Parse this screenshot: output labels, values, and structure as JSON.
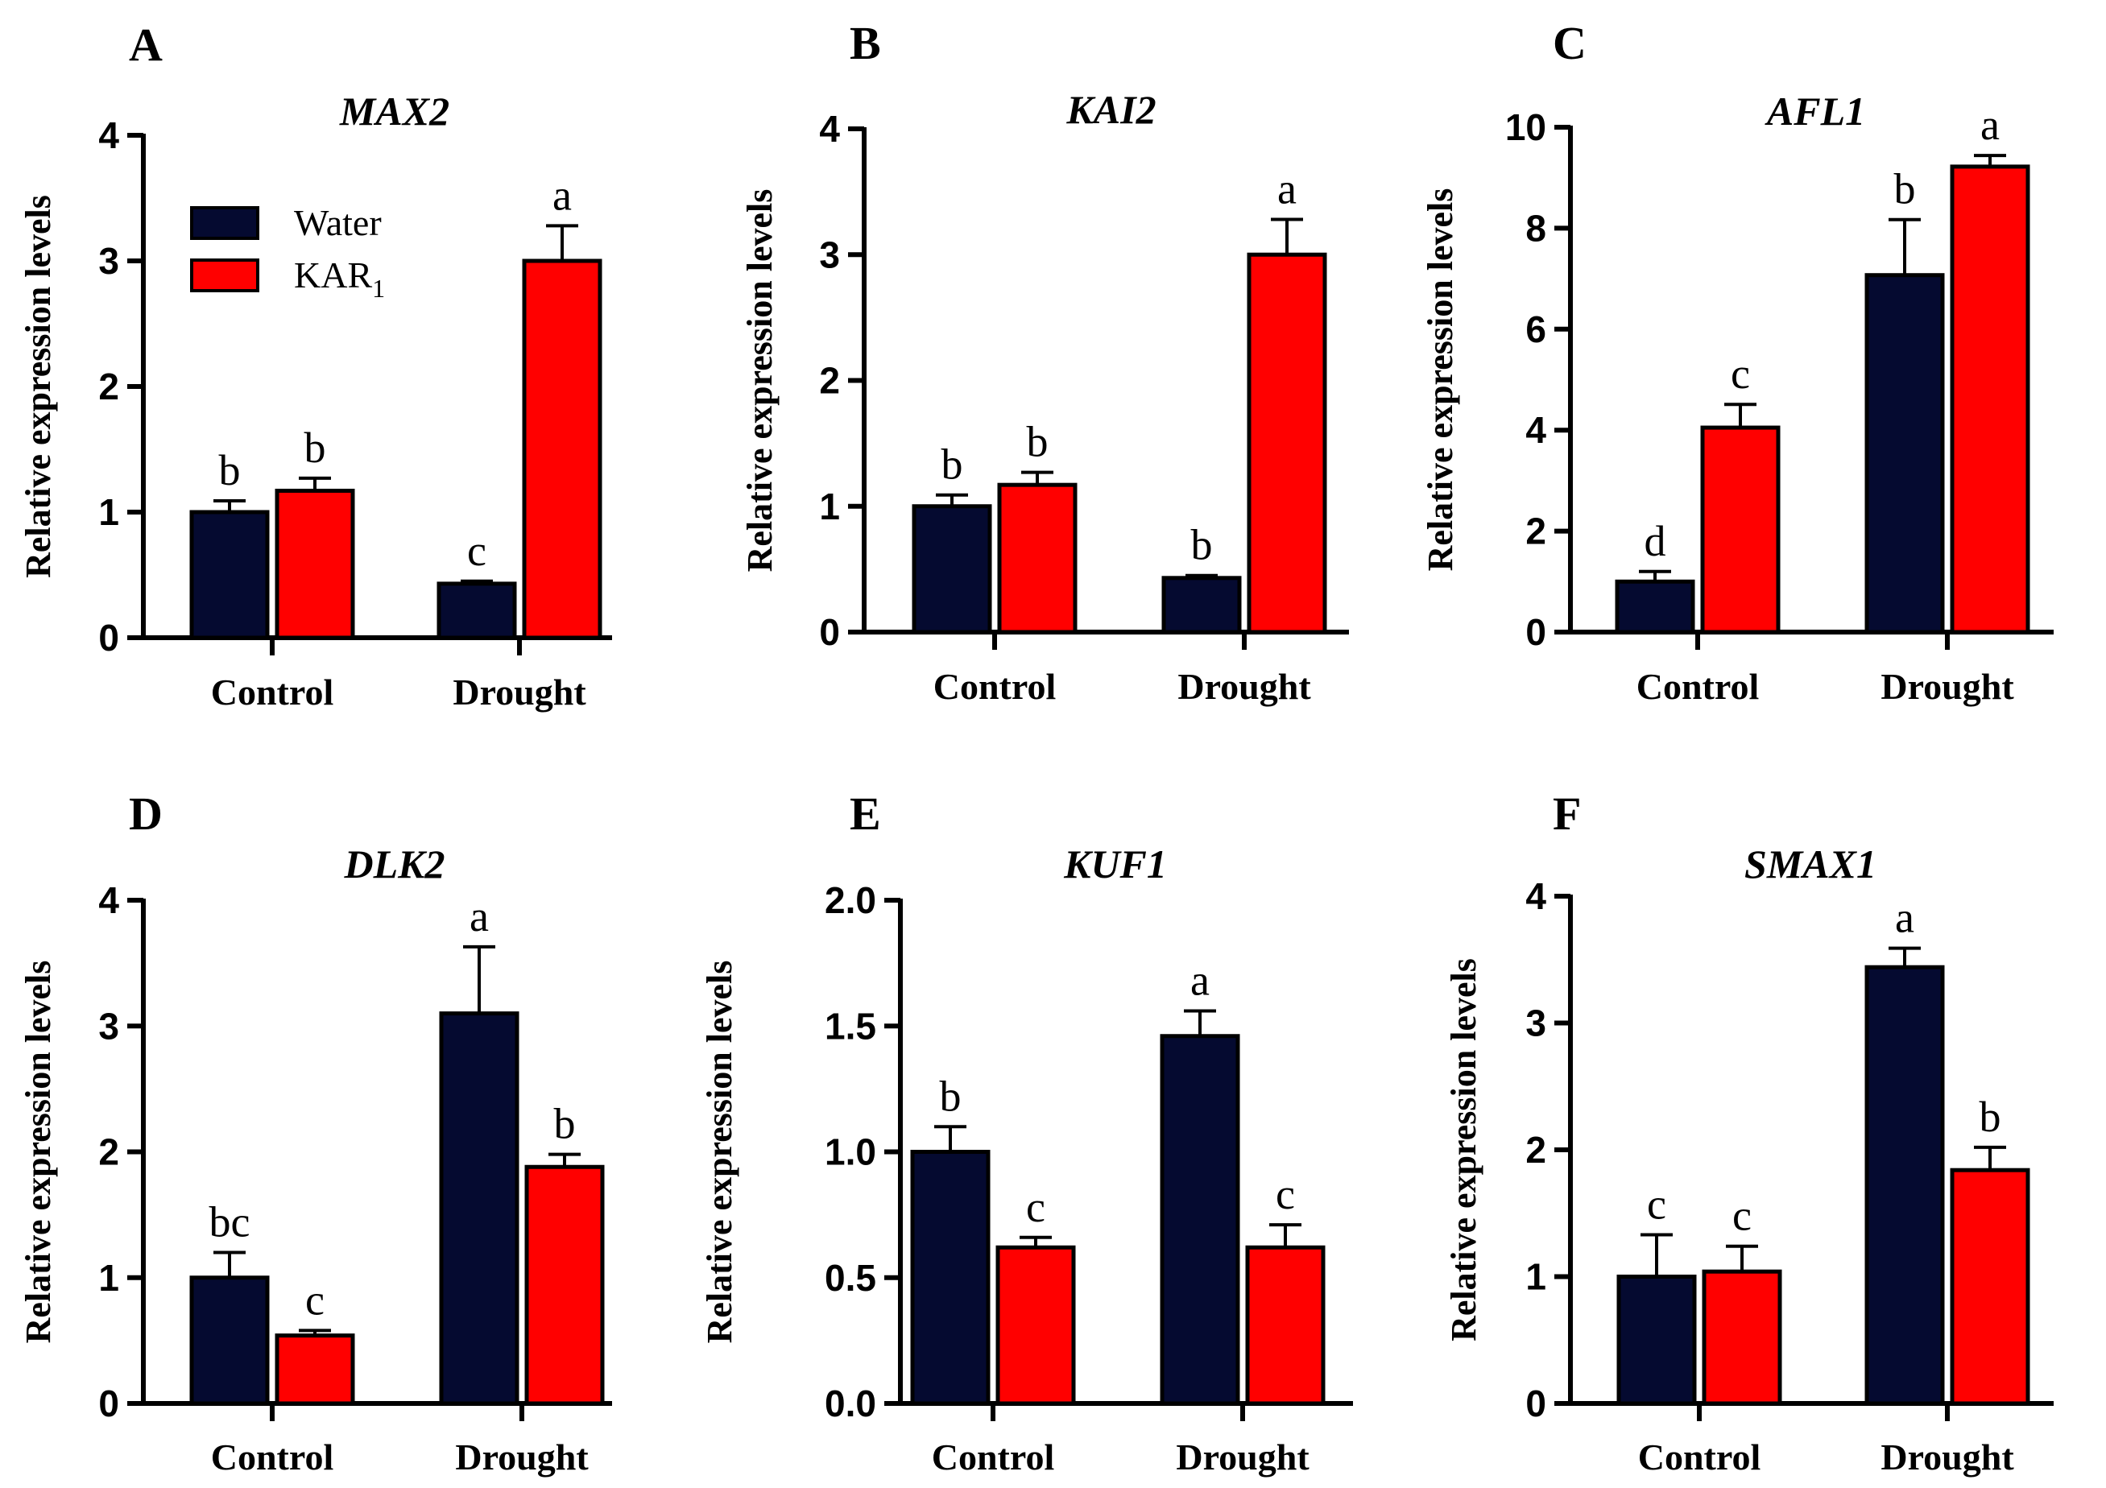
{
  "legend": {
    "entries": [
      {
        "label": "Water",
        "color": "#050A30"
      },
      {
        "label": "KAR",
        "subscript": "1",
        "color": "#FF0000"
      }
    ]
  },
  "chart_data": [
    {
      "panel": "A",
      "type": "bar",
      "title": "MAX2",
      "xlabel": "",
      "ylabel": "Relative expression levels",
      "categories": [
        "Control",
        "Drought"
      ],
      "ylim": [
        0,
        4
      ],
      "yticks": [
        "0",
        "1",
        "2",
        "3",
        "4"
      ],
      "ytick_values": [
        0,
        1,
        2,
        3,
        4
      ],
      "series": [
        {
          "name": "Water",
          "values": [
            1.0,
            0.43
          ],
          "errors": [
            0.09,
            0.02
          ],
          "labels": [
            "b",
            "c"
          ]
        },
        {
          "name": "KAR1",
          "values": [
            1.17,
            3.0
          ],
          "errors": [
            0.1,
            0.28
          ],
          "labels": [
            "b",
            "a"
          ]
        }
      ],
      "legend": true
    },
    {
      "panel": "B",
      "type": "bar",
      "title": "KAI2",
      "xlabel": "",
      "ylabel": "Relative expression levels",
      "categories": [
        "Control",
        "Drought"
      ],
      "ylim": [
        0,
        4
      ],
      "yticks": [
        "0",
        "1",
        "2",
        "3",
        "4"
      ],
      "ytick_values": [
        0,
        1,
        2,
        3,
        4
      ],
      "series": [
        {
          "name": "Water",
          "values": [
            1.0,
            0.43
          ],
          "errors": [
            0.09,
            0.02
          ],
          "labels": [
            "b",
            "b"
          ]
        },
        {
          "name": "KAR1",
          "values": [
            1.17,
            3.0
          ],
          "errors": [
            0.1,
            0.28
          ],
          "labels": [
            "b",
            "a"
          ]
        }
      ],
      "legend": false
    },
    {
      "panel": "C",
      "type": "bar",
      "title": "AFL1",
      "xlabel": "",
      "ylabel": "Relative expression levels",
      "categories": [
        "Control",
        "Drought"
      ],
      "ylim": [
        0,
        10
      ],
      "yticks": [
        "0",
        "2",
        "4",
        "6",
        "8",
        "10"
      ],
      "ytick_values": [
        0,
        2,
        4,
        6,
        8,
        10
      ],
      "series": [
        {
          "name": "Water",
          "values": [
            1.0,
            7.07
          ],
          "errors": [
            0.2,
            1.1
          ],
          "labels": [
            "d",
            "b"
          ]
        },
        {
          "name": "KAR1",
          "values": [
            4.05,
            9.22
          ],
          "errors": [
            0.46,
            0.22
          ],
          "labels": [
            "c",
            "a"
          ]
        }
      ],
      "legend": false
    },
    {
      "panel": "D",
      "type": "bar",
      "title": "DLK2",
      "xlabel": "",
      "ylabel": "Relative expression levels",
      "categories": [
        "Control",
        "Drought"
      ],
      "ylim": [
        0,
        4
      ],
      "yticks": [
        "0",
        "1",
        "2",
        "3",
        "4"
      ],
      "ytick_values": [
        0,
        1,
        2,
        3,
        4
      ],
      "series": [
        {
          "name": "Water",
          "values": [
            1.0,
            3.1
          ],
          "errors": [
            0.2,
            0.53
          ],
          "labels": [
            "bc",
            "a"
          ]
        },
        {
          "name": "KAR1",
          "values": [
            0.54,
            1.88
          ],
          "errors": [
            0.04,
            0.1
          ],
          "labels": [
            "c",
            "b"
          ]
        }
      ],
      "legend": false
    },
    {
      "panel": "E",
      "type": "bar",
      "title": "KUF1",
      "xlabel": "",
      "ylabel": "Relative expression levels",
      "categories": [
        "Control",
        "Drought"
      ],
      "ylim": [
        0,
        2
      ],
      "yticks": [
        "0.0",
        "0.5",
        "1.0",
        "1.5",
        "2.0"
      ],
      "ytick_values": [
        0,
        0.5,
        1.0,
        1.5,
        2.0
      ],
      "series": [
        {
          "name": "Water",
          "values": [
            1.0,
            1.46
          ],
          "errors": [
            0.1,
            0.1
          ],
          "labels": [
            "b",
            "a"
          ]
        },
        {
          "name": "KAR1",
          "values": [
            0.62,
            0.62
          ],
          "errors": [
            0.04,
            0.09
          ],
          "labels": [
            "c",
            "c"
          ]
        }
      ],
      "legend": false
    },
    {
      "panel": "F",
      "type": "bar",
      "title": "SMAX1",
      "xlabel": "",
      "ylabel": "Relative expression levels",
      "categories": [
        "Control",
        "Drought"
      ],
      "ylim": [
        0,
        4
      ],
      "yticks": [
        "0",
        "1",
        "2",
        "3",
        "4"
      ],
      "ytick_values": [
        0,
        1,
        2,
        3,
        4
      ],
      "series": [
        {
          "name": "Water",
          "values": [
            1.0,
            3.44
          ],
          "errors": [
            0.33,
            0.15
          ],
          "labels": [
            "c",
            "a"
          ]
        },
        {
          "name": "KAR1",
          "values": [
            1.04,
            1.84
          ],
          "errors": [
            0.2,
            0.18
          ],
          "labels": [
            "c",
            "b"
          ]
        }
      ],
      "legend": false
    }
  ]
}
